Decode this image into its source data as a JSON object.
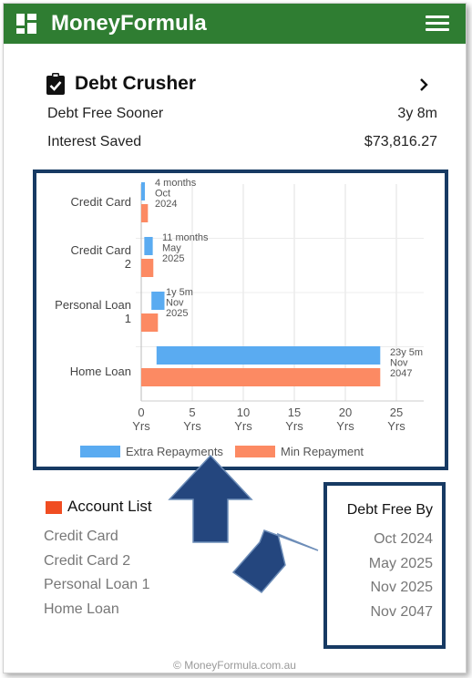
{
  "app": {
    "title": "MoneyFormula",
    "footer": "© MoneyFormula.com.au"
  },
  "card": {
    "title": "Debt Crusher",
    "stats": [
      {
        "label": "Debt Free Sooner",
        "value": "3y 8m"
      },
      {
        "label": "Interest Saved",
        "value": "$73,816.27"
      }
    ]
  },
  "chart_data": {
    "type": "bar",
    "orientation": "horizontal",
    "categories": [
      "Credit Card",
      "Credit Card 2",
      "Personal Loan 1",
      "Home Loan"
    ],
    "category_lines": [
      [
        "Credit Card"
      ],
      [
        "Credit Card",
        "2"
      ],
      [
        "Personal Loan",
        "1"
      ],
      [
        "Home Loan"
      ]
    ],
    "series": [
      {
        "name": "Extra Repayments",
        "color": "#5aabf1",
        "start": [
          0,
          0.3,
          1,
          1.5
        ],
        "values": [
          0.33,
          0.92,
          1.42,
          23.42
        ]
      },
      {
        "name": "Min Repayment",
        "color": "#fc8a63",
        "values": [
          0.33,
          0.92,
          1.42,
          23.42
        ]
      }
    ],
    "annotations": [
      [
        "4 months",
        "Oct",
        "2024"
      ],
      [
        "11 months",
        "May",
        "2025"
      ],
      [
        "1y 5m",
        "Nov",
        "2025"
      ],
      [
        "23y 5m",
        "Nov",
        "2047"
      ]
    ],
    "xticks": [
      "0",
      "5",
      "10",
      "15",
      "20",
      "25"
    ],
    "xunit": "Yrs",
    "xlim": [
      0,
      25
    ],
    "grid": true,
    "legend_position": "bottom"
  },
  "accounts": {
    "title": "Account List",
    "items": [
      "Credit Card",
      "Credit Card 2",
      "Personal Loan 1",
      "Home Loan"
    ]
  },
  "debt_free": {
    "title": "Debt Free By",
    "items": [
      "Oct 2024",
      "May 2025",
      "Nov 2025",
      "Nov 2047"
    ]
  },
  "colors": {
    "appbar": "#2f7d32",
    "highlight": "#173a63",
    "arrow": "#24467e",
    "account_marker": "#f04d22"
  }
}
